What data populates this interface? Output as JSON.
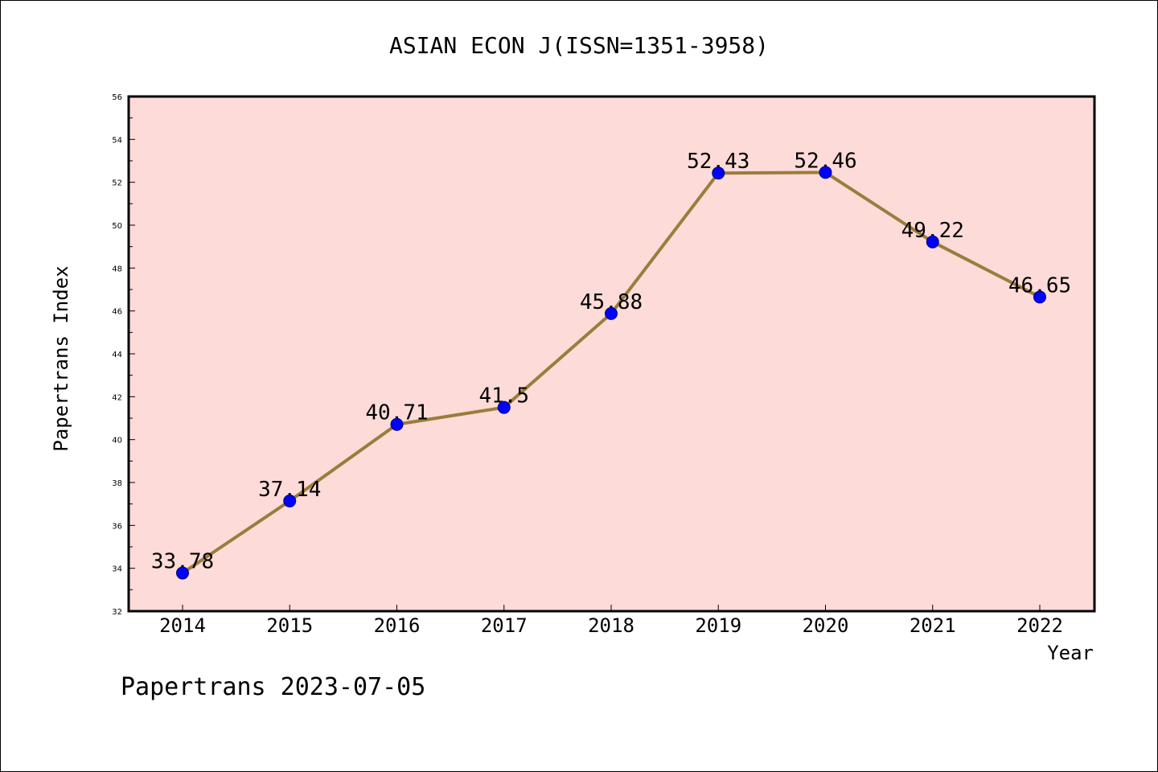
{
  "chart_data": {
    "type": "line",
    "title": "ASIAN ECON J(ISSN=1351-3958)",
    "xlabel": "Year",
    "ylabel": "Papertrans Index",
    "x": [
      "2014",
      "2015",
      "2016",
      "2017",
      "2018",
      "2019",
      "2020",
      "2021",
      "2022"
    ],
    "series": [
      {
        "values": [
          33.78,
          37.14,
          40.71,
          41.5,
          45.88,
          52.43,
          52.46,
          49.22,
          46.65
        ],
        "labels": [
          "33.78",
          "37.14",
          "40.71",
          "41.5",
          "45.88",
          "52.43",
          "52.46",
          "49.22",
          "46.65"
        ]
      }
    ],
    "ylim": [
      32,
      56
    ],
    "yticks": [
      "32",
      "34",
      "36",
      "38",
      "40",
      "42",
      "44",
      "46",
      "48",
      "50",
      "52",
      "54",
      "56"
    ],
    "grid": false,
    "colors": {
      "plot_background": "#fddbd8",
      "line": "#9a7d3c",
      "marker": "#0000ff"
    }
  },
  "footer": "Papertrans 2023-07-05"
}
